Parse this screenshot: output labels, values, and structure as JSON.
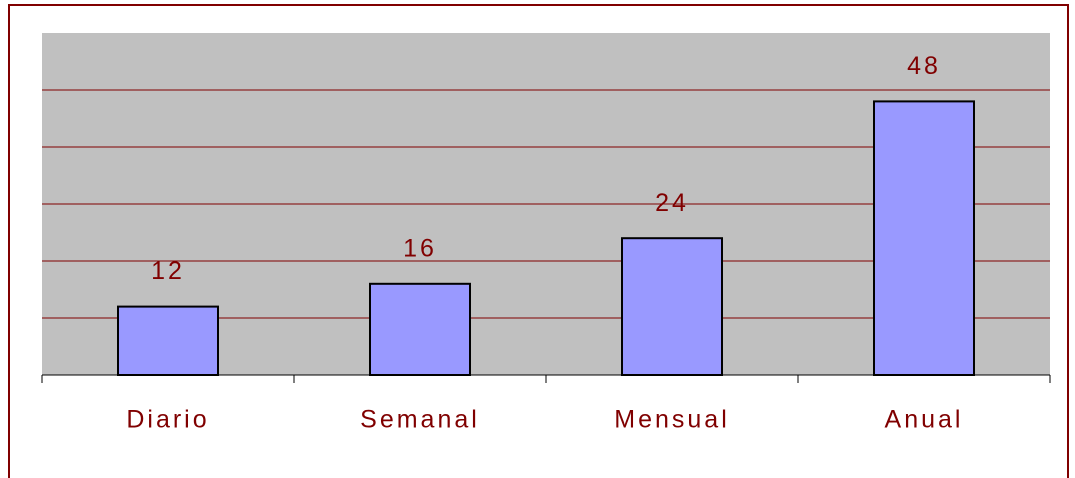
{
  "chart_data": {
    "type": "bar",
    "categories": [
      "Diario",
      "Semanal",
      "Mensual",
      "Anual"
    ],
    "values": [
      12,
      16,
      24,
      48
    ],
    "color": "#9999ff",
    "ylim": [
      0,
      60
    ],
    "yticks": [
      0,
      10,
      20,
      30,
      40,
      50,
      60
    ],
    "grid": true
  }
}
